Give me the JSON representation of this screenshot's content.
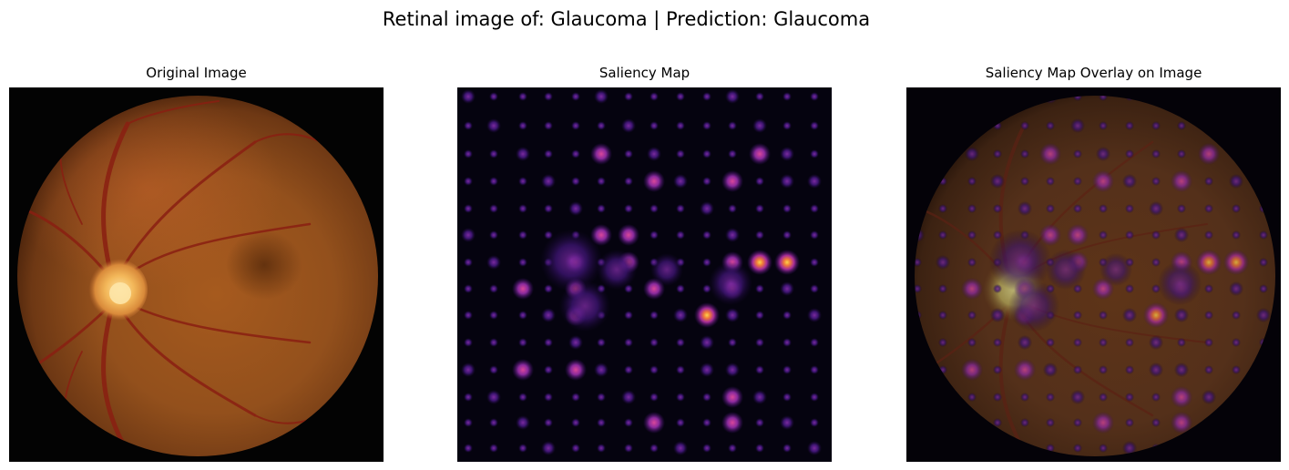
{
  "figure": {
    "title": "Retinal image of: Glaucoma | Prediction: Glaucoma"
  },
  "panels": [
    {
      "title": "Original Image"
    },
    {
      "title": "Saliency Map"
    },
    {
      "title": "Saliency Map Overlay on Image"
    }
  ],
  "colors": {
    "background": "#ffffff",
    "fundus_outer": "#000000",
    "fundus_mid": "#8a4a1c",
    "fundus_center": "#b0641e",
    "optic_disc": "#f4c060",
    "vessel": "#8a1a10",
    "saliency_background": "#05030f",
    "saliency_low": "#3c0f70",
    "saliency_mid": "#a52c98",
    "saliency_high": "#fbb32c"
  }
}
